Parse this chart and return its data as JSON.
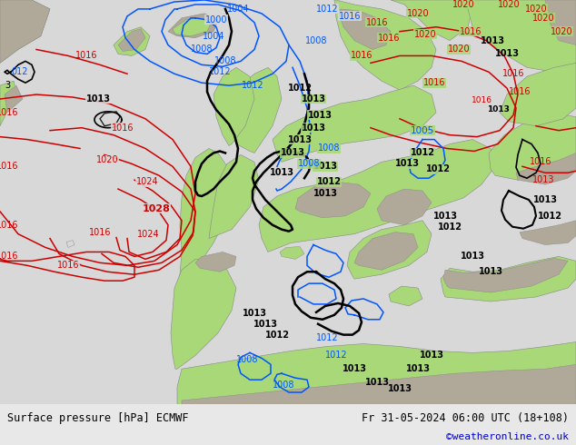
{
  "title_left": "Surface pressure [hPa] ECMWF",
  "title_right": "Fr 31-05-2024 06:00 UTC (18+108)",
  "credit": "©weatheronline.co.uk",
  "credit_color": "#0000cc",
  "ocean_color": "#d8d8d8",
  "land_color": "#a8d878",
  "mountain_color": "#b0a898",
  "bottom_bar_color": "#e8e8e8",
  "figsize": [
    6.34,
    4.9
  ],
  "dpi": 100,
  "bottom_text_color": "#000000",
  "isobar_blue": "#0055ff",
  "isobar_red": "#cc0000",
  "isobar_black": "#000000",
  "white": "#ffffff"
}
